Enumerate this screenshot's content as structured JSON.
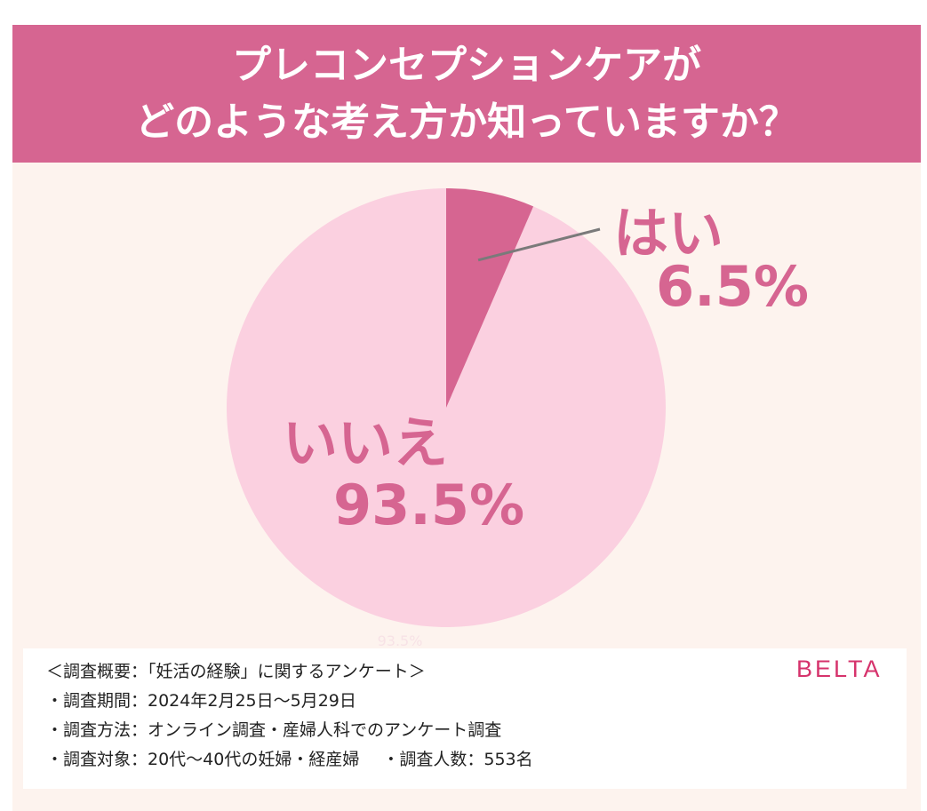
{
  "title": {
    "line1": "プレコンセプションケアが",
    "line2": "どのような考え方か知っていますか？"
  },
  "colors": {
    "header": "#d66591",
    "yes": "#d66591",
    "no": "#fbd0e0",
    "background": "#fdf3ee",
    "leader_line": "#7a7a7a",
    "brand": "#d6336c"
  },
  "chart_data": {
    "type": "pie",
    "start": "12 o'clock",
    "direction": "clockwise",
    "slices": [
      {
        "label": "はい",
        "value": 6.5,
        "display": "6.5%"
      },
      {
        "label": "いいえ",
        "value": 93.5,
        "display": "93.5%"
      }
    ],
    "faint_label": "93.5%"
  },
  "survey": {
    "heading": "＜調査概要：「妊活の経験」に関するアンケート＞",
    "period": "・調査期間：2024年2月25日〜5月29日",
    "method": "・調査方法：オンライン調査・産婦人科でのアンケート調査",
    "target": "・調査対象：20代〜40代の妊婦・経産婦",
    "respondents": "・調査人数：553名"
  },
  "brand": "BELTA"
}
